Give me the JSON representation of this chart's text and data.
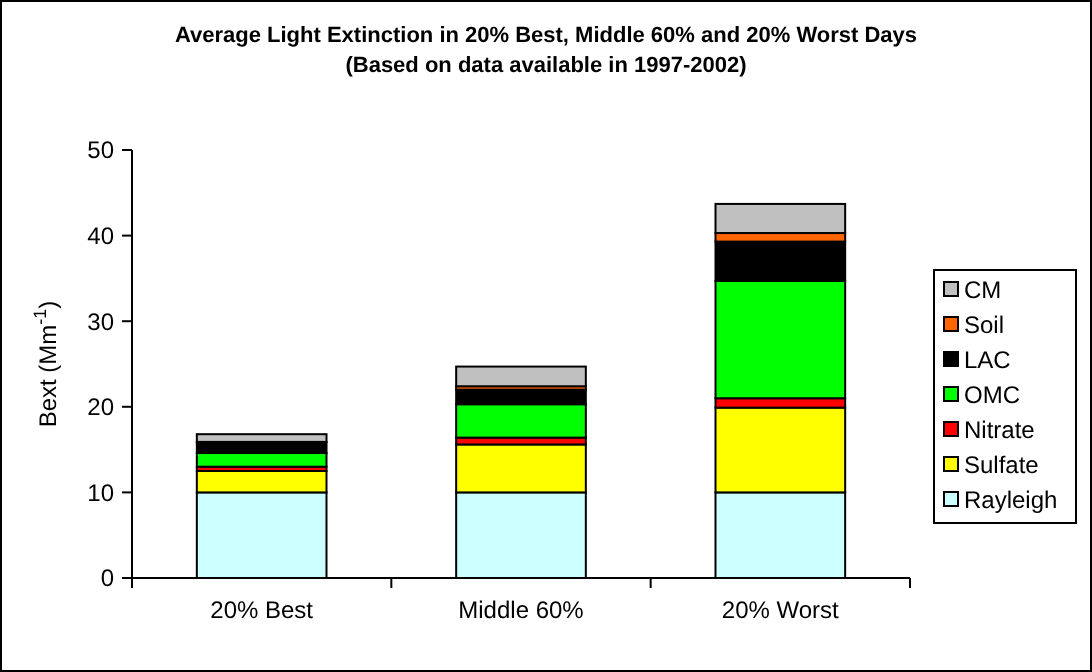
{
  "chart_data": {
    "type": "bar",
    "title": "Average Light Extinction in 20% Best, Middle 60% and 20% Worst Days",
    "subtitle": "(Based on data available in 1997-2002)",
    "ylabel": "Bext (Mm$^{-1}$)",
    "categories": [
      "20% Best",
      "Middle 60%",
      "20% Worst"
    ],
    "stacked": true,
    "ylim": [
      0,
      50
    ],
    "yticks": [
      0,
      10,
      20,
      30,
      40,
      50
    ],
    "grid": false,
    "legend": "right",
    "series": [
      {
        "name": "Rayleigh",
        "color": "#ccffff",
        "values": [
          10,
          10,
          10
        ]
      },
      {
        "name": "Sulfate",
        "color": "#ffff00",
        "values": [
          2.5,
          5.6,
          9.9
        ]
      },
      {
        "name": "Nitrate",
        "color": "#ff0000",
        "values": [
          0.5,
          0.8,
          1.1
        ]
      },
      {
        "name": "OMC",
        "color": "#00ff00",
        "values": [
          1.6,
          3.9,
          13.7
        ]
      },
      {
        "name": "LAC",
        "color": "#000000",
        "values": [
          1.3,
          1.7,
          4.6
        ]
      },
      {
        "name": "Soil",
        "color": "#ff6600",
        "values": [
          null,
          0.4,
          1.0
        ]
      },
      {
        "name": "CM",
        "color": "#c0c0c0",
        "values": [
          0.9,
          2.3,
          3.4
        ]
      }
    ]
  }
}
